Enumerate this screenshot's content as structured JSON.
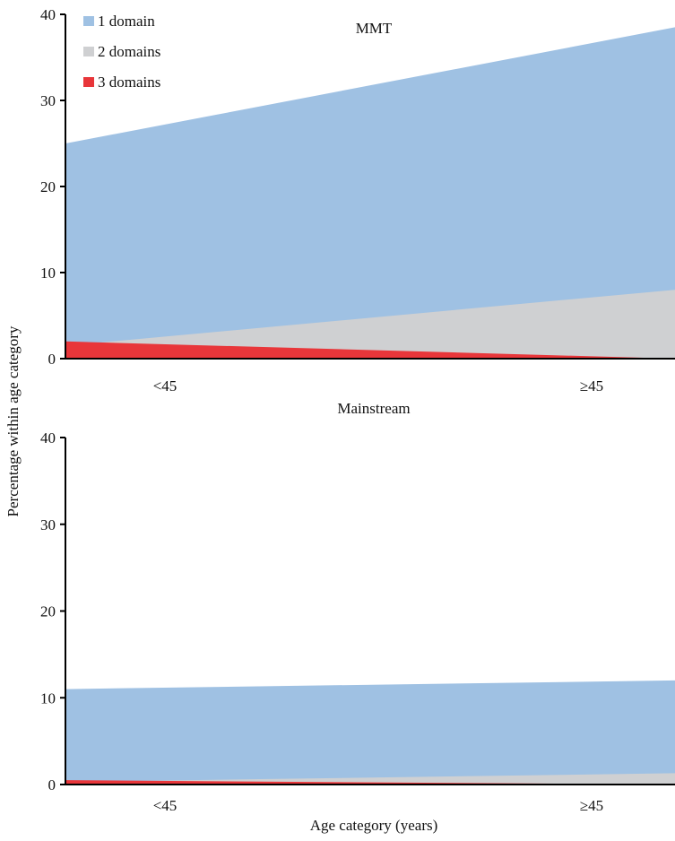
{
  "figure": {
    "ylabel": "Percentage within age category",
    "xlabel": "Age category (years)"
  },
  "legend": [
    {
      "label": "1 domain",
      "color": "#9fc1e3"
    },
    {
      "label": "2 domains",
      "color": "#cfd0d2"
    },
    {
      "label": "3 domains",
      "color": "#e8363a"
    }
  ],
  "chart_data": [
    {
      "type": "area",
      "title": "MMT",
      "xlabel": "",
      "categories": [
        "<45",
        "≥45"
      ],
      "ylim": [
        0,
        40
      ],
      "yticks": [
        0,
        10,
        20,
        30,
        40
      ],
      "stacked": false,
      "series": [
        {
          "name": "1 domain",
          "values": [
            25,
            38.5
          ],
          "color": "#9fc1e3"
        },
        {
          "name": "2 domains",
          "values": [
            1.5,
            8
          ],
          "color": "#cfd0d2"
        },
        {
          "name": "3 domains",
          "values": [
            2,
            0
          ],
          "color": "#e8363a"
        }
      ]
    },
    {
      "type": "area",
      "title": "Mainstream",
      "xlabel": "Age category (years)",
      "categories": [
        "<45",
        "≥45"
      ],
      "ylim": [
        0,
        40
      ],
      "yticks": [
        0,
        10,
        20,
        30,
        40
      ],
      "stacked": false,
      "series": [
        {
          "name": "1 domain",
          "values": [
            11,
            12
          ],
          "color": "#9fc1e3"
        },
        {
          "name": "2 domains",
          "values": [
            0.3,
            1.3
          ],
          "color": "#cfd0d2"
        },
        {
          "name": "3 domains",
          "values": [
            0.5,
            0
          ],
          "color": "#e8363a"
        }
      ]
    }
  ]
}
